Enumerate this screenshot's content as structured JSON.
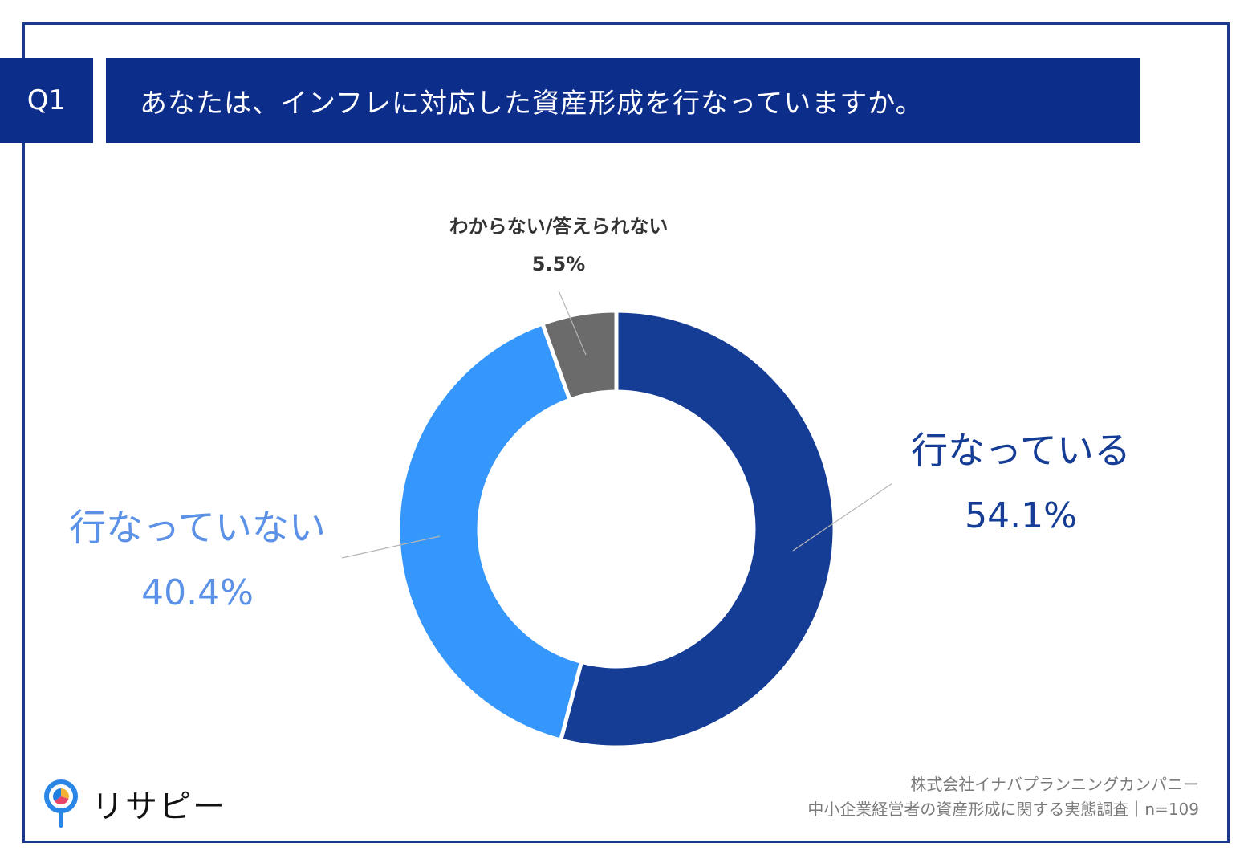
{
  "question": {
    "number": "Q1",
    "text": "あなたは、インフレに対応した資産形成を行なっていますか。"
  },
  "chart_data": {
    "type": "pie",
    "variant": "donut",
    "slices": [
      {
        "label": "行なっている",
        "value": 54.1,
        "value_label": "54.1%",
        "color": "#163d96"
      },
      {
        "label": "行なっていない",
        "value": 40.4,
        "value_label": "40.4%",
        "color": "#3597fb"
      },
      {
        "label": "わからない/答えられない",
        "value": 5.5,
        "value_label": "5.5%",
        "color": "#6b6b6b"
      }
    ],
    "label_colors": {
      "slice_0": "#163d96",
      "slice_1": "#5b91e6",
      "slice_2": "#333333"
    }
  },
  "footer": {
    "company": "株式会社イナバプランニングカンパニー",
    "survey": "中小企業経営者の資産形成に関する実態調査｜n=109"
  },
  "logo": {
    "text": "リサピー",
    "icon": "magnifier-pie-icon"
  }
}
